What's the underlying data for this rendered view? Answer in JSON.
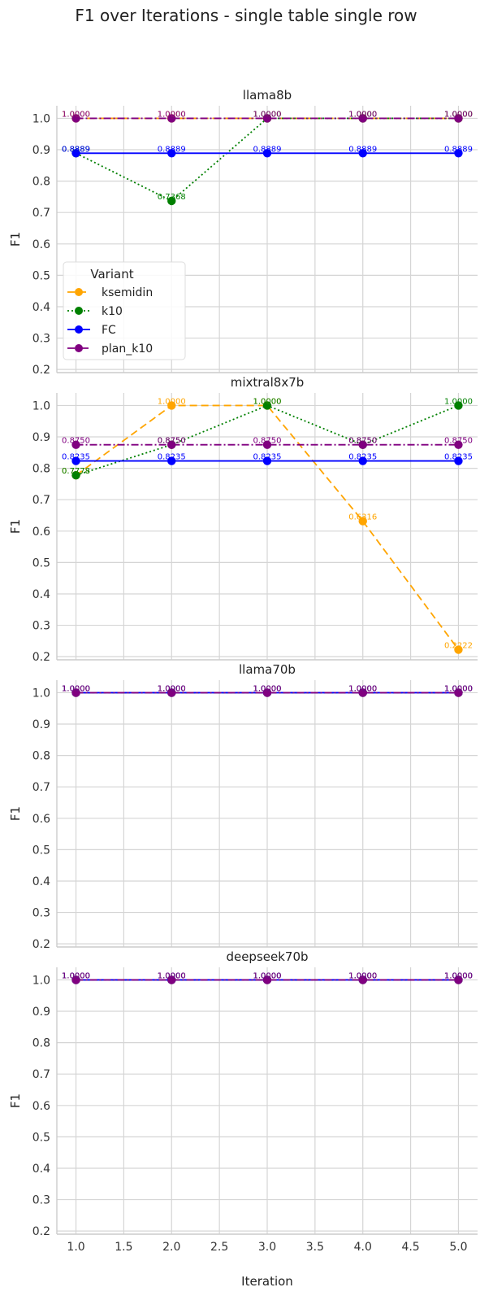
{
  "figure": {
    "title": "F1 over Iterations - single table single row",
    "xlabel": "Iteration",
    "legend_title": "Variant"
  },
  "chart_data": [
    {
      "type": "line",
      "title": "llama8b",
      "xlabel": "",
      "ylabel": "F1",
      "x": [
        1.0,
        2.0,
        3.0,
        4.0,
        5.0
      ],
      "xlim": [
        0.8,
        5.2
      ],
      "ylim": [
        0.19,
        1.04
      ],
      "xticks": [
        "1.0",
        "1.5",
        "2.0",
        "2.5",
        "3.0",
        "3.5",
        "4.0",
        "4.5",
        "5.0"
      ],
      "yticks": [
        "0.2",
        "0.3",
        "0.4",
        "0.5",
        "0.6",
        "0.7",
        "0.8",
        "0.9",
        "1.0"
      ],
      "grid": true,
      "legend": "lower-left",
      "series": [
        {
          "name": "ksemidin",
          "values": [
            1.0,
            1.0,
            1.0,
            1.0,
            1.0
          ],
          "labels": [
            "1.0000",
            "1.0000",
            "1.0000",
            "1.0000",
            "1.0000"
          ],
          "color": "#FFA500",
          "dash": "dashed"
        },
        {
          "name": "k10",
          "values": [
            0.8889,
            0.7368,
            1.0,
            1.0,
            1.0
          ],
          "labels": [
            "0.8889",
            "0.7368",
            "1.0000",
            "1.0000",
            "1.0000"
          ],
          "color": "#008000",
          "dash": "dotted"
        },
        {
          "name": "FC",
          "values": [
            0.8889,
            0.8889,
            0.8889,
            0.8889,
            0.8889
          ],
          "labels": [
            "0.8889",
            "0.8889",
            "0.8889",
            "0.8889",
            "0.8889"
          ],
          "color": "#0000FF",
          "dash": "solid"
        },
        {
          "name": "plan_k10",
          "values": [
            1.0,
            1.0,
            1.0,
            1.0,
            1.0
          ],
          "labels": [
            "1.0000",
            "1.0000",
            "1.0000",
            "1.0000",
            "1.0000"
          ],
          "color": "#800080",
          "dash": "dashdot"
        }
      ]
    },
    {
      "type": "line",
      "title": "mixtral8x7b",
      "xlabel": "",
      "ylabel": "F1",
      "x": [
        1.0,
        2.0,
        3.0,
        4.0,
        5.0
      ],
      "xlim": [
        0.8,
        5.2
      ],
      "ylim": [
        0.19,
        1.04
      ],
      "xticks": [
        "1.0",
        "1.5",
        "2.0",
        "2.5",
        "3.0",
        "3.5",
        "4.0",
        "4.5",
        "5.0"
      ],
      "yticks": [
        "0.2",
        "0.3",
        "0.4",
        "0.5",
        "0.6",
        "0.7",
        "0.8",
        "0.9",
        "1.0"
      ],
      "grid": true,
      "legend": "none",
      "series": [
        {
          "name": "ksemidin",
          "values": [
            0.7778,
            1.0,
            1.0,
            0.6316,
            0.2222
          ],
          "labels": [
            "0.7778",
            "1.0000",
            "1.0000",
            "0.6316",
            "0.2222"
          ],
          "color": "#FFA500",
          "dash": "dashed"
        },
        {
          "name": "k10",
          "values": [
            0.7778,
            0.875,
            1.0,
            0.875,
            1.0
          ],
          "labels": [
            "0.7778",
            "0.8750",
            "1.0000",
            "0.8750",
            "1.0000"
          ],
          "color": "#008000",
          "dash": "dotted"
        },
        {
          "name": "FC",
          "values": [
            0.8235,
            0.8235,
            0.8235,
            0.8235,
            0.8235
          ],
          "labels": [
            "0.8235",
            "0.8235",
            "0.8235",
            "0.8235",
            "0.8235"
          ],
          "color": "#0000FF",
          "dash": "solid"
        },
        {
          "name": "plan_k10",
          "values": [
            0.875,
            0.875,
            0.875,
            0.875,
            0.875
          ],
          "labels": [
            "0.8750",
            "0.8750",
            "0.8750",
            "0.8750",
            "0.8750"
          ],
          "color": "#800080",
          "dash": "dashdot"
        }
      ]
    },
    {
      "type": "line",
      "title": "llama70b",
      "xlabel": "",
      "ylabel": "F1",
      "x": [
        1.0,
        2.0,
        3.0,
        4.0,
        5.0
      ],
      "xlim": [
        0.8,
        5.2
      ],
      "ylim": [
        0.19,
        1.04
      ],
      "xticks": [
        "1.0",
        "1.5",
        "2.0",
        "2.5",
        "3.0",
        "3.5",
        "4.0",
        "4.5",
        "5.0"
      ],
      "yticks": [
        "0.2",
        "0.3",
        "0.4",
        "0.5",
        "0.6",
        "0.7",
        "0.8",
        "0.9",
        "1.0"
      ],
      "grid": true,
      "legend": "none",
      "series": [
        {
          "name": "ksemidin",
          "values": [
            1.0,
            1.0,
            1.0,
            1.0,
            1.0
          ],
          "labels": [
            "1.0000",
            "1.0000",
            "1.0000",
            "1.0000",
            "1.0000"
          ],
          "color": "#FFA500",
          "dash": "dashed"
        },
        {
          "name": "k10",
          "values": [
            1.0,
            1.0,
            1.0,
            1.0,
            1.0
          ],
          "labels": [
            "1.0000",
            "1.0000",
            "1.0000",
            "1.0000",
            "1.0000"
          ],
          "color": "#008000",
          "dash": "dotted"
        },
        {
          "name": "FC",
          "values": [
            1.0,
            1.0,
            1.0,
            1.0,
            1.0
          ],
          "labels": [
            "1.0000",
            "1.0000",
            "1.0000",
            "1.0000",
            "1.0000"
          ],
          "color": "#0000FF",
          "dash": "solid"
        },
        {
          "name": "plan_k10",
          "values": [
            1.0,
            1.0,
            1.0,
            1.0,
            1.0
          ],
          "labels": [
            "1.0000",
            "1.0000",
            "1.0000",
            "1.0000",
            "1.0000"
          ],
          "color": "#800080",
          "dash": "dashdot"
        }
      ]
    },
    {
      "type": "line",
      "title": "deepseek70b",
      "xlabel": "Iteration",
      "ylabel": "F1",
      "x": [
        1.0,
        2.0,
        3.0,
        4.0,
        5.0
      ],
      "xlim": [
        0.8,
        5.2
      ],
      "ylim": [
        0.19,
        1.04
      ],
      "xticks": [
        "1.0",
        "1.5",
        "2.0",
        "2.5",
        "3.0",
        "3.5",
        "4.0",
        "4.5",
        "5.0"
      ],
      "yticks": [
        "0.2",
        "0.3",
        "0.4",
        "0.5",
        "0.6",
        "0.7",
        "0.8",
        "0.9",
        "1.0"
      ],
      "grid": true,
      "legend": "none",
      "series": [
        {
          "name": "ksemidin",
          "values": [
            1.0,
            1.0,
            1.0,
            1.0,
            1.0
          ],
          "labels": [
            "1.0000",
            "1.0000",
            "1.0000",
            "1.0000",
            "1.0000"
          ],
          "color": "#FFA500",
          "dash": "dashed"
        },
        {
          "name": "k10",
          "values": [
            1.0,
            1.0,
            1.0,
            1.0,
            1.0
          ],
          "labels": [
            "1.0000",
            "1.0000",
            "1.0000",
            "1.0000",
            "1.0000"
          ],
          "color": "#008000",
          "dash": "dotted"
        },
        {
          "name": "FC",
          "values": [
            1.0,
            1.0,
            1.0,
            1.0,
            1.0
          ],
          "labels": [
            "1.0000",
            "1.0000",
            "1.0000",
            "1.0000",
            "1.0000"
          ],
          "color": "#0000FF",
          "dash": "solid"
        },
        {
          "name": "plan_k10",
          "values": [
            1.0,
            1.0,
            1.0,
            1.0,
            1.0
          ],
          "labels": [
            "1.0000",
            "1.0000",
            "1.0000",
            "1.0000",
            "1.0000"
          ],
          "color": "#800080",
          "dash": "dashdot"
        }
      ]
    }
  ]
}
